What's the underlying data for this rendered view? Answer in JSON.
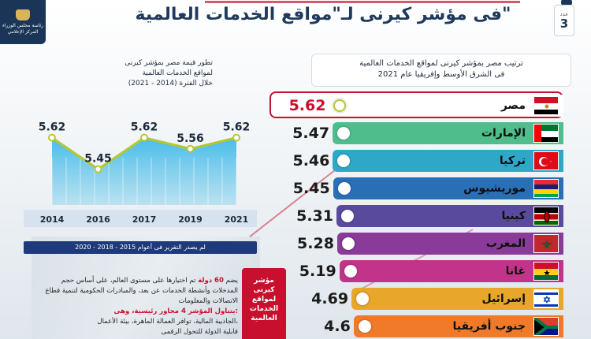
{
  "header": {
    "logo_lines": [
      "رئاسة مجلس الوزراء",
      "المركز الإعلامي"
    ],
    "title": "فى مؤشر كيرنى لـ\"مواقع الخدمات العالمية\"",
    "issue_prefix": "عدد",
    "issue_number": "3"
  },
  "ranking": {
    "title_line1": "ترتيب مصر بمؤشر كيرنى لمواقع الخدمات العالمية",
    "title_line2": "فى الشرق الأوسط وإفريقيا عام 2021",
    "items": [
      {
        "name": "مصر",
        "value": "5.62",
        "color": "#ffffff",
        "flag": "egypt"
      },
      {
        "name": "الإمارات",
        "value": "5.47",
        "color": "#4fbe8c",
        "flag": "uae"
      },
      {
        "name": "تركيا",
        "value": "5.46",
        "color": "#2fa8c8",
        "flag": "turkey"
      },
      {
        "name": "موريشيوس",
        "value": "5.45",
        "color": "#2a6fb5",
        "flag": "mauritius"
      },
      {
        "name": "كينيا",
        "value": "5.31",
        "color": "#5a4a9e",
        "flag": "kenya"
      },
      {
        "name": "المغرب",
        "value": "5.28",
        "color": "#8a3a98",
        "flag": "morocco"
      },
      {
        "name": "غانا",
        "value": "5.19",
        "color": "#c2338a",
        "flag": "ghana"
      },
      {
        "name": "إسرائيل",
        "value": "4.69",
        "color": "#e8a62a",
        "flag": "israel"
      },
      {
        "name": "جنوب أفريقيا",
        "value": "4.6",
        "color": "#f07a2a",
        "flag": "south-africa"
      }
    ]
  },
  "chart_panel": {
    "title_line1": "تطور قيمة مصر بمؤشر كيرنى",
    "title_line2": "لمواقع الخدمات العالمية",
    "title_line3": "خلال الفترة (2014 - 2021)",
    "report_note": "لم يصدر التقرير فى أعوام 2015 - 2018 - 2020"
  },
  "chart_data": {
    "type": "line",
    "x": [
      "2014",
      "2016",
      "2017",
      "2019",
      "2021"
    ],
    "values": [
      5.62,
      5.45,
      5.62,
      5.56,
      5.62
    ],
    "labels": [
      "5.62",
      "5.45",
      "5.62",
      "5.56",
      "5.62"
    ],
    "ylim": [
      5.3,
      5.75
    ],
    "title": "تطور قيمة مصر بمؤشر كيرنى لمواقع الخدمات العالمية خلال الفترة (2014 - 2021)",
    "xlabel": "",
    "ylabel": "",
    "grid": false,
    "line_color": "#b7c72c",
    "fill_color": "#2bb3e6"
  },
  "info": {
    "line1_prefix": "يضم",
    "line1_red": "60 دولة",
    "line1_rest": "تم اختيارها على مستوى العالم، على أساس حجم",
    "line2": "المدخلات وأنشطة الخدمات عن بعد، والمبادرات الحكومية لتنمية قطاع",
    "line3": "الاتصالات والمعلومات",
    "line4": "يتناول المؤشر 4 محاور رئيسية، وهى:",
    "line5": "الجاذبية المالية، توافر العمالة الماهرة، بيئة الأعمال،",
    "line6": "قابلية الدولة للتحول الرقمى"
  },
  "side_note": {
    "lines": [
      "مؤشر",
      "كيرنى",
      "لمواقع",
      "الخدمات",
      "العالمية"
    ]
  },
  "colors": {
    "accent_red": "#c8102e",
    "navy": "#1a3557"
  }
}
